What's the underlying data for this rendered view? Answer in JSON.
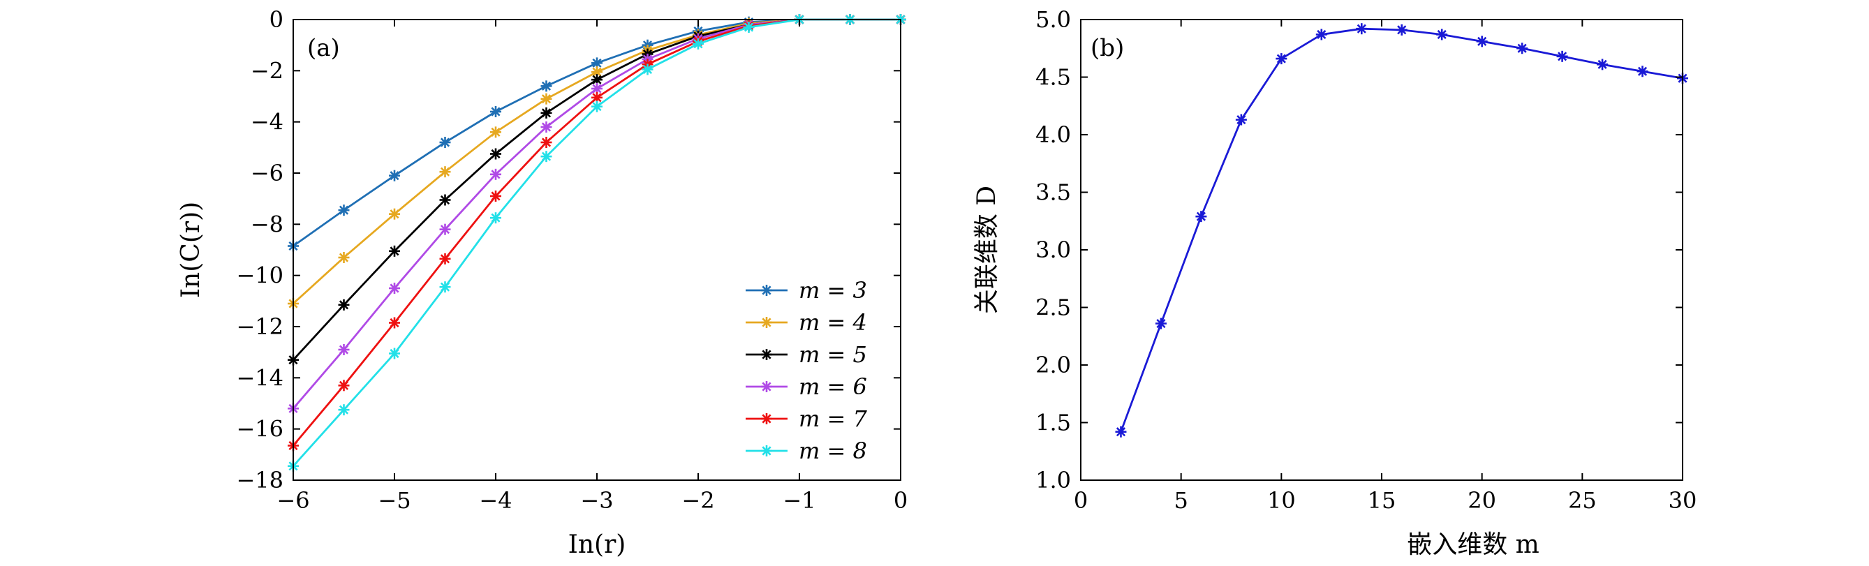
{
  "chart_data": [
    {
      "type": "line",
      "panel_label": "(a)",
      "xlabel": "In(r)",
      "ylabel": "In(C(r))",
      "xlim": [
        -6,
        0
      ],
      "ylim": [
        -18,
        0
      ],
      "xticks": [
        -6,
        -5,
        -4,
        -3,
        -2,
        -1,
        0
      ],
      "yticks": [
        -18,
        -16,
        -14,
        -12,
        -10,
        -8,
        -6,
        -4,
        -2,
        0
      ],
      "xtick_labels": [
        "−6",
        "−5",
        "−4",
        "−3",
        "−2",
        "−1",
        "0"
      ],
      "ytick_labels": [
        "−18",
        "−16",
        "−14",
        "−12",
        "−10",
        "−8",
        "−6",
        "−4",
        "−2",
        "0"
      ],
      "x": [
        -6,
        -5.5,
        -5,
        -4.5,
        -4,
        -3.5,
        -3,
        -2.5,
        -2,
        -1.5,
        -1,
        -0.5,
        0
      ],
      "legend_position": "lower-right",
      "series": [
        {
          "name": "m = 3",
          "color": "#1f6fb4",
          "values": [
            -8.85,
            -7.45,
            -6.1,
            -4.8,
            -3.6,
            -2.6,
            -1.7,
            -1.0,
            -0.45,
            -0.1,
            0,
            0,
            0
          ]
        },
        {
          "name": "m = 4",
          "color": "#e6a820",
          "values": [
            -11.1,
            -9.3,
            -7.6,
            -5.95,
            -4.4,
            -3.1,
            -2.05,
            -1.2,
            -0.6,
            -0.15,
            0,
            0,
            0
          ]
        },
        {
          "name": "m = 5",
          "color": "#000000",
          "values": [
            -13.3,
            -11.15,
            -9.05,
            -7.05,
            -5.25,
            -3.65,
            -2.35,
            -1.35,
            -0.65,
            -0.2,
            0,
            0,
            0
          ]
        },
        {
          "name": "m = 6",
          "color": "#b04ae6",
          "values": [
            -15.2,
            -12.9,
            -10.5,
            -8.2,
            -6.05,
            -4.2,
            -2.7,
            -1.55,
            -0.75,
            -0.2,
            0,
            0,
            0
          ]
        },
        {
          "name": "m = 7",
          "color": "#ee1111",
          "values": [
            -16.65,
            -14.3,
            -11.85,
            -9.35,
            -6.9,
            -4.8,
            -3.05,
            -1.75,
            -0.85,
            -0.25,
            0,
            0,
            0
          ]
        },
        {
          "name": "m = 8",
          "color": "#22e0e8",
          "values": [
            -17.45,
            -15.25,
            -13.05,
            -10.45,
            -7.75,
            -5.35,
            -3.4,
            -1.95,
            -0.95,
            -0.3,
            0,
            0,
            0
          ]
        }
      ]
    },
    {
      "type": "line",
      "panel_label": "(b)",
      "xlabel": "嵌入维数 m",
      "ylabel": "关联维数 D",
      "xlim": [
        0,
        30
      ],
      "ylim": [
        1.0,
        5.0
      ],
      "xticks": [
        0,
        5,
        10,
        15,
        20,
        25,
        30
      ],
      "yticks": [
        1.0,
        1.5,
        2.0,
        2.5,
        3.0,
        3.5,
        4.0,
        4.5,
        5.0
      ],
      "xtick_labels": [
        "0",
        "5",
        "10",
        "15",
        "20",
        "25",
        "30"
      ],
      "ytick_labels": [
        "1.0",
        "1.5",
        "2.0",
        "2.5",
        "3.0",
        "3.5",
        "4.0",
        "4.5",
        "5.0"
      ],
      "series": [
        {
          "name": "D",
          "color": "#1a1ad6",
          "x": [
            2,
            4,
            6,
            8,
            10,
            12,
            14,
            16,
            18,
            20,
            22,
            24,
            26,
            28,
            30
          ],
          "values": [
            1.42,
            2.36,
            3.29,
            4.13,
            4.66,
            4.87,
            4.92,
            4.91,
            4.87,
            4.81,
            4.75,
            4.68,
            4.61,
            4.55,
            4.49
          ]
        }
      ]
    }
  ]
}
